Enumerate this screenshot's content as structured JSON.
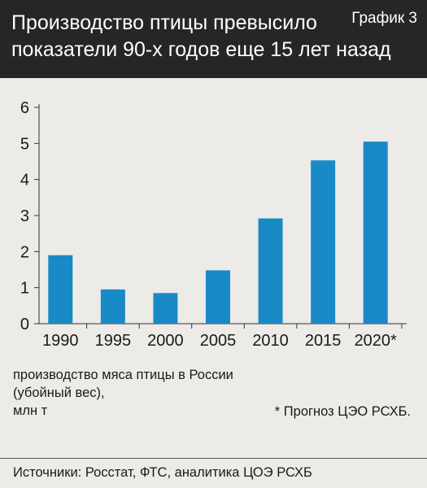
{
  "header": {
    "title_lines": [
      "Производство птицы превысило",
      "показатели 90-х годов еще 15 лет назад"
    ],
    "badge": "График 3"
  },
  "chart_data": {
    "type": "bar",
    "categories": [
      "1990",
      "1995",
      "2000",
      "2005",
      "2010",
      "2015",
      "2020*"
    ],
    "values": [
      1.9,
      0.95,
      0.85,
      1.48,
      2.92,
      4.53,
      5.05
    ],
    "ylim": [
      0,
      6
    ],
    "yticks": [
      "0",
      "1",
      "2",
      "3",
      "4",
      "5",
      "6"
    ],
    "ylabel_lines": [
      "производство мяса птицы в России",
      "(убойный вес),",
      "млн т"
    ],
    "grid": false,
    "bar_color": "#1a8ac6"
  },
  "footnote": "* Прогноз ЦЭО РСХБ.",
  "sources": "Источники: Росстат, ФТС, аналитика ЦОЭ РСХБ"
}
